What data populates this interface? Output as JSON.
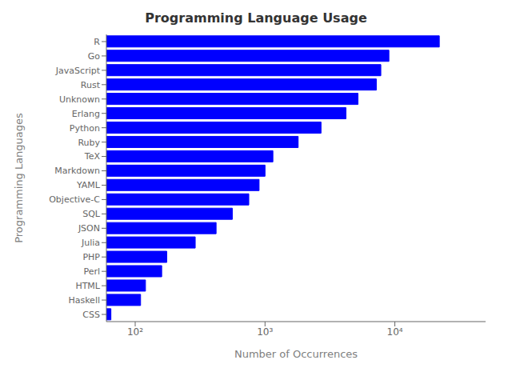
{
  "chart_data": {
    "type": "bar",
    "orientation": "horizontal",
    "title": "Programming Language Usage",
    "xlabel": "Number of Occurrences",
    "ylabel": "Programming Languages",
    "categories": [
      "CSS",
      "Haskell",
      "HTML",
      "Perl",
      "PHP",
      "Julia",
      "JSON",
      "SQL",
      "Objective-C",
      "YAML",
      "Markdown",
      "TeX",
      "Ruby",
      "Python",
      "Erlang",
      "Unknown",
      "Rust",
      "JavaScript",
      "Go",
      "R"
    ],
    "values": [
      65,
      110,
      120,
      160,
      175,
      290,
      420,
      560,
      750,
      900,
      1000,
      1150,
      1800,
      2700,
      4200,
      5200,
      7200,
      7800,
      9000,
      22000
    ],
    "color": "#0000ff",
    "log": "x",
    "xlim": [
      60,
      50000
    ],
    "xticks": [
      {
        "value": 100,
        "label": "10²"
      },
      {
        "value": 1000,
        "label": "10³"
      },
      {
        "value": 10000,
        "label": "10⁴"
      }
    ],
    "grid": false
  }
}
